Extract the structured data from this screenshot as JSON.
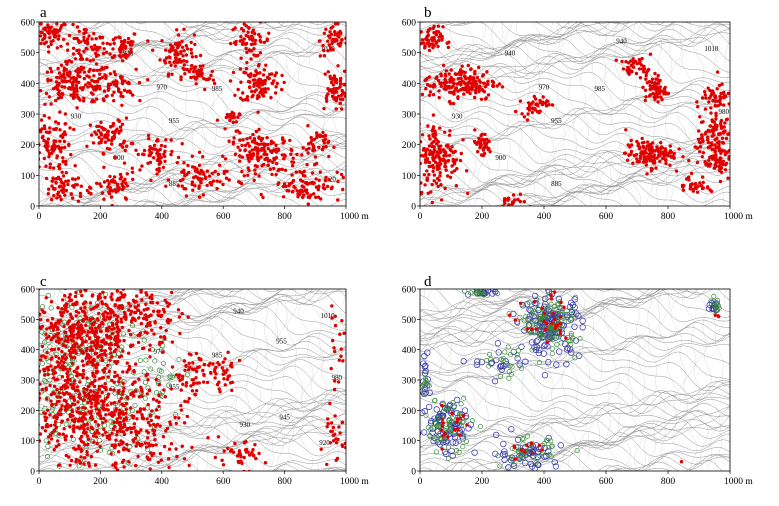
{
  "figure": {
    "x_unit": "m",
    "panels": [
      {
        "id": "a",
        "label": "a",
        "x_ticks": [
          "0",
          "200",
          "400",
          "600",
          "800",
          "1000 m"
        ],
        "y_ticks": [
          "0",
          "100",
          "200",
          "300",
          "400",
          "500",
          "600"
        ],
        "x_range": [
          0,
          1000
        ],
        "y_range": [
          0,
          600
        ],
        "contour_labels": [
          {
            "text": "1010",
            "x": 940,
            "y": 505
          },
          {
            "text": "940",
            "x": 290,
            "y": 490
          },
          {
            "text": "970",
            "x": 400,
            "y": 380
          },
          {
            "text": "985",
            "x": 580,
            "y": 375
          },
          {
            "text": "930",
            "x": 120,
            "y": 285
          },
          {
            "text": "955",
            "x": 440,
            "y": 270
          },
          {
            "text": "900",
            "x": 260,
            "y": 150
          },
          {
            "text": "885",
            "x": 440,
            "y": 65
          },
          {
            "text": "920",
            "x": 950,
            "y": 80
          }
        ],
        "point_clusters": [
          {
            "cx": 40,
            "cy": 560,
            "rx": 50,
            "ry": 40,
            "n": 60
          },
          {
            "cx": 150,
            "cy": 520,
            "rx": 60,
            "ry": 60,
            "n": 60
          },
          {
            "cx": 270,
            "cy": 520,
            "rx": 50,
            "ry": 50,
            "n": 50
          },
          {
            "cx": 450,
            "cy": 500,
            "rx": 50,
            "ry": 60,
            "n": 80
          },
          {
            "cx": 690,
            "cy": 540,
            "rx": 60,
            "ry": 50,
            "n": 60
          },
          {
            "cx": 960,
            "cy": 540,
            "rx": 40,
            "ry": 50,
            "n": 50
          },
          {
            "cx": 120,
            "cy": 400,
            "rx": 110,
            "ry": 60,
            "n": 170
          },
          {
            "cx": 250,
            "cy": 390,
            "rx": 60,
            "ry": 50,
            "n": 50
          },
          {
            "cx": 520,
            "cy": 420,
            "rx": 50,
            "ry": 40,
            "n": 40
          },
          {
            "cx": 720,
            "cy": 400,
            "rx": 60,
            "ry": 60,
            "n": 100
          },
          {
            "cx": 960,
            "cy": 380,
            "rx": 40,
            "ry": 60,
            "n": 60
          },
          {
            "cx": 40,
            "cy": 200,
            "rx": 60,
            "ry": 90,
            "n": 100
          },
          {
            "cx": 230,
            "cy": 230,
            "rx": 60,
            "ry": 50,
            "n": 70
          },
          {
            "cx": 380,
            "cy": 170,
            "rx": 60,
            "ry": 50,
            "n": 60
          },
          {
            "cx": 730,
            "cy": 170,
            "rx": 100,
            "ry": 60,
            "n": 150
          },
          {
            "cx": 900,
            "cy": 200,
            "rx": 40,
            "ry": 50,
            "n": 40
          },
          {
            "cx": 80,
            "cy": 60,
            "rx": 60,
            "ry": 50,
            "n": 60
          },
          {
            "cx": 250,
            "cy": 60,
            "rx": 60,
            "ry": 50,
            "n": 60
          },
          {
            "cx": 520,
            "cy": 90,
            "rx": 80,
            "ry": 50,
            "n": 70
          },
          {
            "cx": 870,
            "cy": 70,
            "rx": 100,
            "ry": 50,
            "n": 90
          },
          {
            "cx": 620,
            "cy": 280,
            "rx": 30,
            "ry": 30,
            "n": 20
          }
        ]
      },
      {
        "id": "b",
        "label": "b",
        "x_ticks": [
          "0",
          "200",
          "400",
          "600",
          "800",
          "1000 m"
        ],
        "y_ticks": [
          "0",
          "100",
          "200",
          "300",
          "400",
          "500",
          "600"
        ],
        "x_range": [
          0,
          1000
        ],
        "y_range": [
          0,
          600
        ],
        "contour_labels": [
          {
            "text": "940",
            "x": 650,
            "y": 530
          },
          {
            "text": "1010",
            "x": 940,
            "y": 505
          },
          {
            "text": "940",
            "x": 290,
            "y": 490
          },
          {
            "text": "970",
            "x": 400,
            "y": 380
          },
          {
            "text": "985",
            "x": 580,
            "y": 375
          },
          {
            "text": "930",
            "x": 120,
            "y": 285
          },
          {
            "text": "955",
            "x": 440,
            "y": 270
          },
          {
            "text": "980",
            "x": 980,
            "y": 300
          },
          {
            "text": "900",
            "x": 260,
            "y": 150
          },
          {
            "text": "885",
            "x": 440,
            "y": 65
          }
        ],
        "point_clusters": [
          {
            "cx": 30,
            "cy": 540,
            "rx": 40,
            "ry": 40,
            "n": 60
          },
          {
            "cx": 130,
            "cy": 400,
            "rx": 110,
            "ry": 50,
            "n": 180
          },
          {
            "cx": 60,
            "cy": 160,
            "rx": 60,
            "ry": 100,
            "n": 160
          },
          {
            "cx": 200,
            "cy": 200,
            "rx": 30,
            "ry": 40,
            "n": 40
          },
          {
            "cx": 370,
            "cy": 330,
            "rx": 40,
            "ry": 30,
            "n": 40
          },
          {
            "cx": 700,
            "cy": 450,
            "rx": 50,
            "ry": 30,
            "n": 40
          },
          {
            "cx": 760,
            "cy": 380,
            "rx": 30,
            "ry": 40,
            "n": 60
          },
          {
            "cx": 740,
            "cy": 170,
            "rx": 70,
            "ry": 40,
            "n": 130
          },
          {
            "cx": 950,
            "cy": 200,
            "rx": 50,
            "ry": 120,
            "n": 160
          },
          {
            "cx": 880,
            "cy": 70,
            "rx": 40,
            "ry": 30,
            "n": 30
          },
          {
            "cx": 960,
            "cy": 360,
            "rx": 40,
            "ry": 30,
            "n": 40
          },
          {
            "cx": 300,
            "cy": 20,
            "rx": 40,
            "ry": 20,
            "n": 20
          }
        ]
      },
      {
        "id": "c",
        "label": "c",
        "x_ticks": [
          "0",
          "200",
          "400",
          "600",
          "800",
          "1000 m"
        ],
        "y_ticks": [
          "0",
          "100",
          "200",
          "300",
          "400",
          "500",
          "600"
        ],
        "x_range": [
          0,
          1000
        ],
        "y_range": [
          0,
          600
        ],
        "contour_labels": [
          {
            "text": "940",
            "x": 650,
            "y": 520
          },
          {
            "text": "1010",
            "x": 940,
            "y": 505
          },
          {
            "text": "955",
            "x": 790,
            "y": 420
          },
          {
            "text": "970",
            "x": 390,
            "y": 385
          },
          {
            "text": "985",
            "x": 580,
            "y": 375
          },
          {
            "text": "955",
            "x": 440,
            "y": 270
          },
          {
            "text": "980",
            "x": 970,
            "y": 300
          },
          {
            "text": "945",
            "x": 800,
            "y": 170
          },
          {
            "text": "930",
            "x": 670,
            "y": 145
          },
          {
            "text": "920",
            "x": 930,
            "y": 85
          }
        ],
        "point_clusters": [
          {
            "cx": 150,
            "cy": 450,
            "rx": 170,
            "ry": 140,
            "n": 450
          },
          {
            "cx": 150,
            "cy": 200,
            "rx": 170,
            "ry": 180,
            "n": 500
          },
          {
            "cx": 350,
            "cy": 150,
            "rx": 120,
            "ry": 150,
            "n": 150
          },
          {
            "cx": 330,
            "cy": 520,
            "rx": 120,
            "ry": 80,
            "n": 120
          },
          {
            "cx": 500,
            "cy": 320,
            "rx": 60,
            "ry": 80,
            "n": 60
          },
          {
            "cx": 600,
            "cy": 320,
            "rx": 40,
            "ry": 60,
            "n": 30
          },
          {
            "cx": 650,
            "cy": 50,
            "rx": 80,
            "ry": 40,
            "n": 40
          },
          {
            "cx": 960,
            "cy": 100,
            "rx": 40,
            "ry": 80,
            "n": 30
          },
          {
            "cx": 970,
            "cy": 400,
            "rx": 30,
            "ry": 100,
            "n": 20
          }
        ],
        "secondary_clusters": [
          {
            "cx": 130,
            "cy": 450,
            "rx": 150,
            "ry": 130,
            "n": 120
          },
          {
            "cx": 150,
            "cy": 200,
            "rx": 160,
            "ry": 170,
            "n": 160
          },
          {
            "cx": 380,
            "cy": 300,
            "rx": 80,
            "ry": 150,
            "n": 40
          }
        ]
      },
      {
        "id": "d",
        "label": "d",
        "x_ticks": [
          "0",
          "200",
          "400",
          "600",
          "800",
          "1000 m"
        ],
        "y_ticks": [
          "0",
          "100",
          "200",
          "300",
          "400",
          "500",
          "600"
        ],
        "x_range": [
          0,
          1000
        ],
        "y_range": [
          0,
          600
        ],
        "contour_labels": [],
        "point_clusters": [
          {
            "cx": 420,
            "cy": 480,
            "rx": 80,
            "ry": 80,
            "n": 30
          },
          {
            "cx": 100,
            "cy": 150,
            "rx": 60,
            "ry": 70,
            "n": 20
          },
          {
            "cx": 350,
            "cy": 70,
            "rx": 70,
            "ry": 40,
            "n": 10
          },
          {
            "cx": 850,
            "cy": 30,
            "rx": 5,
            "ry": 5,
            "n": 1
          },
          {
            "cx": 960,
            "cy": 500,
            "rx": 10,
            "ry": 20,
            "n": 3
          }
        ],
        "secondary_clusters": [
          {
            "cx": 420,
            "cy": 480,
            "rx": 80,
            "ry": 80,
            "n": 120
          },
          {
            "cx": 90,
            "cy": 150,
            "rx": 70,
            "ry": 80,
            "n": 70
          },
          {
            "cx": 350,
            "cy": 60,
            "rx": 80,
            "ry": 40,
            "n": 45
          },
          {
            "cx": 200,
            "cy": 590,
            "rx": 40,
            "ry": 10,
            "n": 15
          },
          {
            "cx": 950,
            "cy": 545,
            "rx": 15,
            "ry": 20,
            "n": 12
          },
          {
            "cx": 20,
            "cy": 280,
            "rx": 20,
            "ry": 40,
            "n": 10
          },
          {
            "cx": 270,
            "cy": 360,
            "rx": 80,
            "ry": 50,
            "n": 20
          }
        ],
        "blue_clusters": [
          {
            "cx": 420,
            "cy": 480,
            "rx": 90,
            "ry": 90,
            "n": 130
          },
          {
            "cx": 90,
            "cy": 150,
            "rx": 80,
            "ry": 90,
            "n": 80
          },
          {
            "cx": 350,
            "cy": 60,
            "rx": 90,
            "ry": 50,
            "n": 50
          },
          {
            "cx": 200,
            "cy": 590,
            "rx": 50,
            "ry": 10,
            "n": 15
          },
          {
            "cx": 950,
            "cy": 545,
            "rx": 15,
            "ry": 20,
            "n": 12
          },
          {
            "cx": 20,
            "cy": 300,
            "rx": 20,
            "ry": 60,
            "n": 15
          },
          {
            "cx": 260,
            "cy": 360,
            "rx": 80,
            "ry": 50,
            "n": 20
          }
        ]
      }
    ],
    "colors": {
      "red": "#e00000",
      "green": "#3a8a3a",
      "blue": "#3030b0",
      "contour": "#8a8a8a",
      "axis": "#000000"
    }
  }
}
